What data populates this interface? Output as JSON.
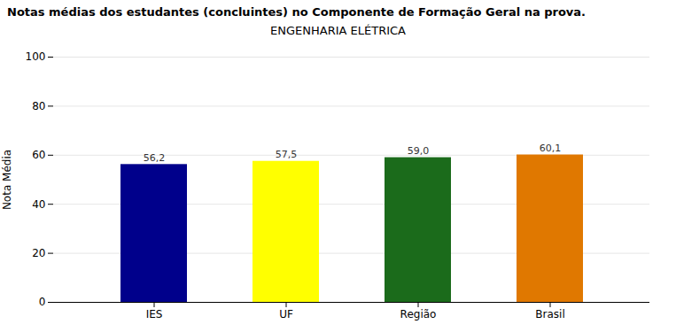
{
  "chart_data": {
    "type": "bar",
    "title": "Notas médias dos estudantes (concluintes) no Componente de Formação Geral na prova.",
    "subtitle": "ENGENHARIA ELÉTRICA",
    "categories": [
      "IES",
      "UF",
      "Região",
      "Brasil"
    ],
    "values": [
      56.2,
      57.5,
      59.0,
      60.1
    ],
    "value_labels": [
      "56,2",
      "57,5",
      "59,0",
      "60,1"
    ],
    "colors": [
      "#00008B",
      "#FFFF00",
      "#1B6B1B",
      "#E07800"
    ],
    "ylabel": "Nota Média",
    "ylim": [
      0,
      100
    ],
    "yticks": [
      0,
      20,
      40,
      60,
      80,
      100
    ],
    "grid": true,
    "data_labels": true
  }
}
